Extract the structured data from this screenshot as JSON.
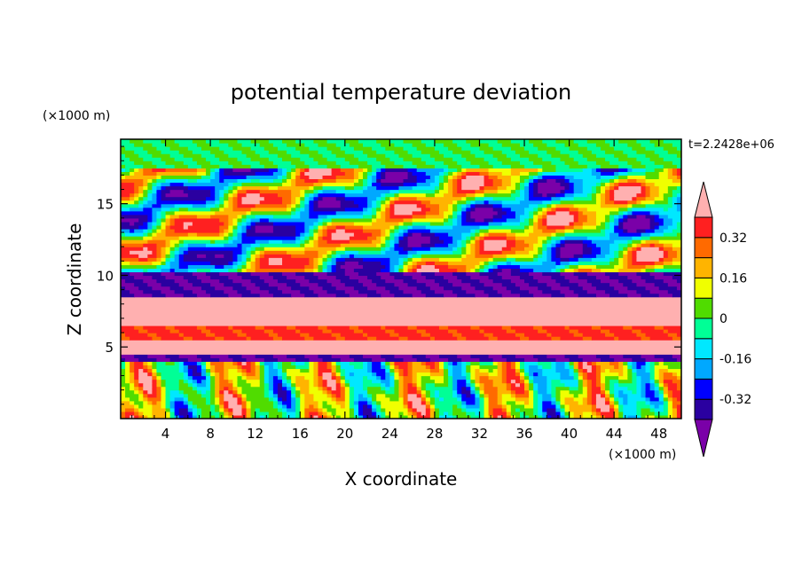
{
  "chart_data": {
    "type": "heatmap",
    "title": "potential temperature deviation",
    "xlabel": "X coordinate",
    "ylabel": "Z coordinate",
    "x_unit": "(×1000 m)",
    "y_unit": "(×1000 m)",
    "time_label": "t=2.2428e+06",
    "xlim": [
      0,
      50
    ],
    "ylim": [
      0,
      19.5
    ],
    "xticks": [
      4,
      8,
      12,
      16,
      20,
      24,
      28,
      32,
      36,
      40,
      44,
      48
    ],
    "yticks": [
      5,
      10,
      15
    ],
    "colorbar": {
      "levels": [
        -0.4,
        -0.32,
        -0.24,
        -0.16,
        -0.08,
        0,
        0.08,
        0.16,
        0.24,
        0.32,
        0.4
      ],
      "labels": [
        "0.32",
        "0.16",
        "0",
        "-0.16",
        "-0.32"
      ],
      "label_values": [
        0.32,
        0.16,
        0,
        -0.16,
        -0.32
      ],
      "colors": [
        "#7a00a8",
        "#2a00a0",
        "#0000ff",
        "#00a8ff",
        "#00e8ff",
        "#00ff96",
        "#50dc00",
        "#f0ff00",
        "#ffb400",
        "#ff6a00",
        "#ff2020",
        "#ffb0b0"
      ]
    },
    "bands": [
      {
        "z0": 0,
        "z1": 4.0,
        "mode": "plume"
      },
      {
        "z0": 4.0,
        "z1": 4.5,
        "value": -0.4
      },
      {
        "z0": 4.5,
        "z1": 5.6,
        "value": 0.44
      },
      {
        "z0": 5.6,
        "z1": 6.4,
        "value": 0.34
      },
      {
        "z0": 6.4,
        "z1": 8.4,
        "value": 0.44
      },
      {
        "z0": 8.4,
        "z1": 10.2,
        "value": -0.4
      },
      {
        "z0": 10.2,
        "z1": 17.6,
        "mode": "streaks"
      },
      {
        "z0": 17.6,
        "z1": 19.5,
        "value": 0.0
      }
    ]
  }
}
